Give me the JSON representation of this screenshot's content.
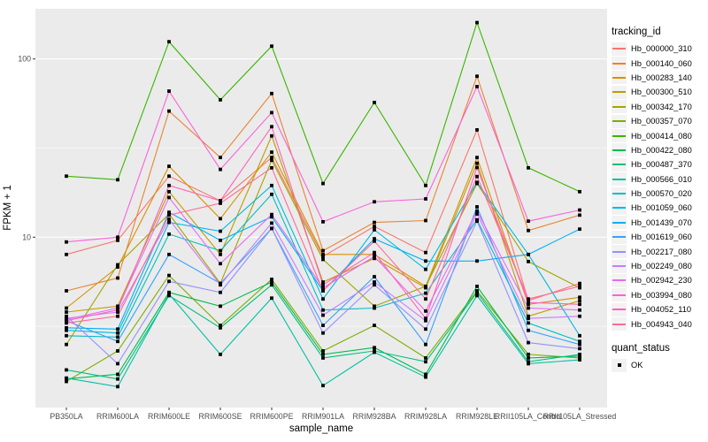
{
  "axes": {
    "x_title": "sample_name",
    "y_title": "FPKM + 1",
    "y_tick_labels": [
      "100",
      "10"
    ],
    "y_tick_values": [
      100,
      10
    ],
    "y_minor_values": [
      31.623,
      3.1623
    ]
  },
  "legend": {
    "tracking_title": "tracking_id",
    "quant_title": "quant_status",
    "quant_ok_label": "OK"
  },
  "colors": {
    "panel_bg": "#EBEBEB",
    "grid": "#FFFFFF",
    "tick_text": "#4D4D4D",
    "title_text": "#000000",
    "marker": "#000000",
    "tick_mark": "#333333"
  },
  "chart_data": {
    "type": "line",
    "y_scale": "log10",
    "xlabel": "sample_name",
    "ylabel": "FPKM + 1",
    "ylim": [
      1.1,
      195
    ],
    "grid": "major+minor",
    "legend_position": "right",
    "marker": "black-square",
    "categories": [
      "PB350LA",
      "RRIM600LA",
      "RRIM600LE",
      "RRIM600SE",
      "RRIM600PE",
      "RRIM901LA",
      "RRIM928BA",
      "RRIM928LA",
      "RRIM928LE",
      "RRII105LA_Control",
      "RRII105LA_Stressed"
    ],
    "series": [
      {
        "name": "Hb_000000_310",
        "color": "#F8766D",
        "values": [
          8.0,
          9.6,
          22,
          16,
          28,
          7.8,
          11.5,
          8.2,
          40,
          4.4,
          5.5
        ]
      },
      {
        "name": "Hb_000140_060",
        "color": "#EA8331",
        "values": [
          5.0,
          5.9,
          51,
          28,
          64,
          8.4,
          12.1,
          12.4,
          80,
          10.9,
          13.3
        ]
      },
      {
        "name": "Hb_000283_140",
        "color": "#D89000",
        "values": [
          4.0,
          6.8,
          25,
          12.7,
          30,
          8.0,
          8.0,
          5.3,
          28,
          4.2,
          4.6
        ]
      },
      {
        "name": "Hb_000300_510",
        "color": "#C09B00",
        "values": [
          3.8,
          4.1,
          18,
          8.0,
          37,
          5.6,
          7.6,
          5.2,
          26,
          3.6,
          4.4
        ]
      },
      {
        "name": "Hb_000342_170",
        "color": "#A3A500",
        "values": [
          2.5,
          7.0,
          13.5,
          5.5,
          27,
          7.5,
          4.1,
          5.3,
          20,
          7.3,
          5.2
        ]
      },
      {
        "name": "Hb_000357_070",
        "color": "#7CAE00",
        "values": [
          1.55,
          2.3,
          6.1,
          3.2,
          5.8,
          2.3,
          3.2,
          2.1,
          5.0,
          2.2,
          2.1
        ]
      },
      {
        "name": "Hb_000414_080",
        "color": "#39B600",
        "values": [
          22,
          21,
          125,
          59,
          118,
          20,
          57,
          19.5,
          160,
          24.5,
          18
        ]
      },
      {
        "name": "Hb_000422_080",
        "color": "#00BB4E",
        "values": [
          1.6,
          1.7,
          4.9,
          4.1,
          5.6,
          2.2,
          2.4,
          1.7,
          5.3,
          2.1,
          2.15
        ]
      },
      {
        "name": "Hb_000487_370",
        "color": "#00BF7D",
        "values": [
          1.8,
          1.6,
          4.7,
          3.1,
          5.4,
          2.1,
          2.3,
          2.0,
          4.9,
          2.0,
          2.2
        ]
      },
      {
        "name": "Hb_000566_010",
        "color": "#00C1A3",
        "values": [
          1.62,
          1.45,
          4.8,
          2.2,
          4.55,
          1.47,
          2.26,
          1.64,
          4.7,
          1.95,
          2.05
        ]
      },
      {
        "name": "Hb_000570_020",
        "color": "#00BFC4",
        "values": [
          2.8,
          2.75,
          10.4,
          8.4,
          17.4,
          3.9,
          4.0,
          4.85,
          12.5,
          3.3,
          2.6
        ]
      },
      {
        "name": "Hb_001059_060",
        "color": "#00BAE0",
        "values": [
          3.0,
          2.9,
          12.1,
          10.8,
          19.5,
          4.5,
          11.0,
          6.6,
          20.3,
          8.0,
          2.8
        ]
      },
      {
        "name": "Hb_001439_070",
        "color": "#00B0F6",
        "values": [
          3.1,
          3.05,
          13.8,
          9.6,
          13.0,
          5.0,
          9.8,
          7.35,
          7.35,
          8.0,
          11.1
        ]
      },
      {
        "name": "Hb_001619_060",
        "color": "#35A2FF",
        "values": [
          3.4,
          2.6,
          8.0,
          5.5,
          11.2,
          3.2,
          6.0,
          2.5,
          14.8,
          3.0,
          2.5
        ]
      },
      {
        "name": "Hb_002217_080",
        "color": "#9590FF",
        "values": [
          3.6,
          1.95,
          5.65,
          4.9,
          11.2,
          2.9,
          5.4,
          3.05,
          12.3,
          2.56,
          2.37
        ]
      },
      {
        "name": "Hb_002249_080",
        "color": "#C77CFF",
        "values": [
          3.5,
          3.8,
          12.6,
          5.4,
          12.0,
          3.65,
          5.6,
          3.4,
          13.5,
          3.5,
          3.6
        ]
      },
      {
        "name": "Hb_002942_230",
        "color": "#E76BF3",
        "values": [
          3.45,
          4.0,
          16.7,
          7.1,
          13.4,
          5.2,
          7.8,
          3.85,
          14.0,
          4.0,
          3.9
        ]
      },
      {
        "name": "Hb_003994_080",
        "color": "#FA62DB",
        "values": [
          9.4,
          10,
          66,
          24,
          50,
          12.2,
          15.8,
          16.4,
          70,
          12.3,
          14.2
        ]
      },
      {
        "name": "Hb_004052_110",
        "color": "#FF62BC",
        "values": [
          3.4,
          3.9,
          19.5,
          16.0,
          41.7,
          5.4,
          8.2,
          3.5,
          24.6,
          4.3,
          4.2
        ]
      },
      {
        "name": "Hb_004943_040",
        "color": "#FF6A98",
        "values": [
          3.3,
          3.6,
          13.3,
          15.5,
          24.5,
          5.0,
          9.5,
          4.5,
          21.9,
          4.5,
          5.3
        ]
      }
    ]
  }
}
